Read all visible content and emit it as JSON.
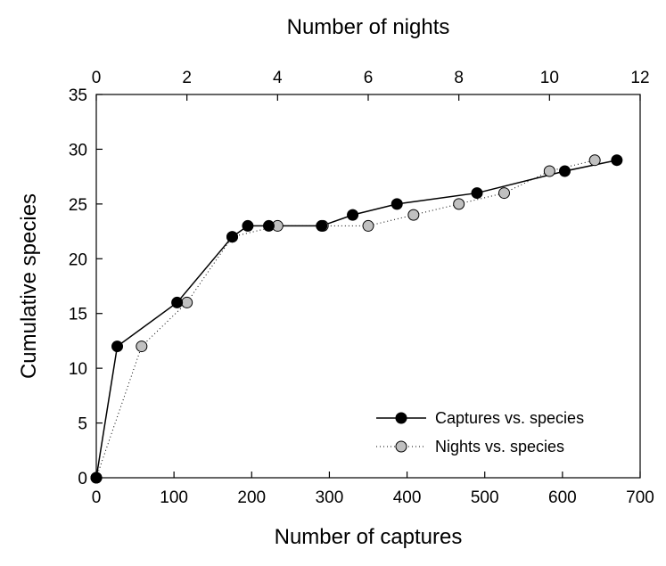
{
  "chart_data": {
    "type": "line",
    "xlabel": "Number of captures",
    "x2label": "Number of nights",
    "ylabel": "Cumulative species",
    "xlim": [
      0,
      700
    ],
    "x2lim": [
      0,
      12
    ],
    "ylim": [
      0,
      35
    ],
    "xticks": [
      0,
      100,
      200,
      300,
      400,
      500,
      600,
      700
    ],
    "x2ticks": [
      0,
      2,
      4,
      6,
      8,
      10,
      12
    ],
    "yticks": [
      0,
      5,
      10,
      15,
      20,
      25,
      30,
      35
    ],
    "grid": false,
    "legend_position": "bottom-right",
    "series": [
      {
        "name": "Captures vs. species",
        "axis": "bottom",
        "style": "solid",
        "marker_color": "#000000",
        "points": [
          [
            0,
            0
          ],
          [
            27,
            12
          ],
          [
            104,
            16
          ],
          [
            175,
            22
          ],
          [
            195,
            23
          ],
          [
            222,
            23
          ],
          [
            290,
            23
          ],
          [
            330,
            24
          ],
          [
            387,
            25
          ],
          [
            490,
            26
          ],
          [
            603,
            28
          ],
          [
            670,
            29
          ]
        ]
      },
      {
        "name": "Nights vs. species",
        "axis": "top",
        "style": "dotted",
        "marker_color": "#c0c0c0",
        "points": [
          [
            0,
            0
          ],
          [
            1,
            12
          ],
          [
            2,
            16
          ],
          [
            3,
            22
          ],
          [
            4,
            23
          ],
          [
            5,
            23
          ],
          [
            6,
            23
          ],
          [
            7,
            24
          ],
          [
            8,
            25
          ],
          [
            9,
            26
          ],
          [
            10,
            28
          ],
          [
            11,
            29
          ]
        ]
      }
    ]
  }
}
